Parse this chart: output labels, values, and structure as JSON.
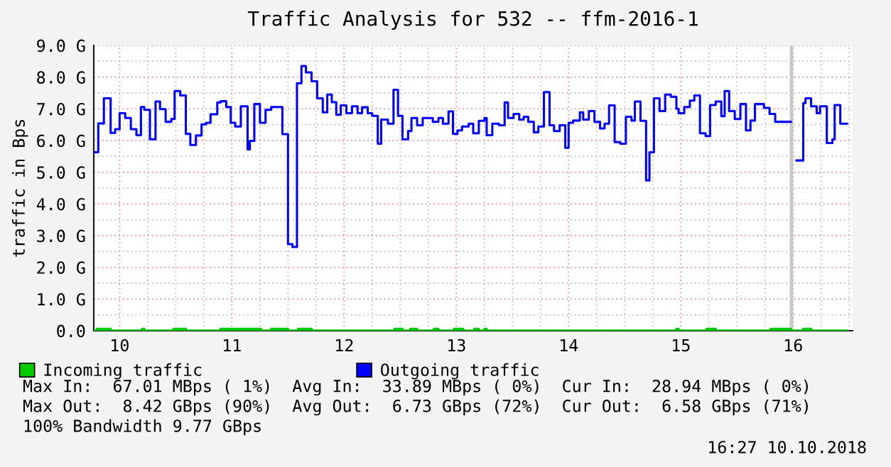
{
  "chart_data": {
    "type": "step",
    "title": "Traffic Analysis for 532 -- ffm-2016-1",
    "ylabel": "traffic in Bps",
    "series": [
      {
        "name": "Incoming traffic",
        "type": "area",
        "color": "#00cc00",
        "x": [
          9.78,
          9.8,
          9.92,
          10.2,
          10.22,
          10.48,
          10.59,
          10.9,
          11.26,
          11.35,
          11.5,
          11.59,
          11.71,
          12.45,
          12.52,
          12.59,
          12.65,
          12.8,
          12.84,
          12.98,
          13.06,
          13.16,
          13.2,
          13.25,
          13.27,
          14.96,
          14.98,
          15.23,
          15.31,
          15.8,
          15.98,
          16.09,
          16.16,
          16.48
        ],
        "values": [
          0,
          0.06,
          0,
          0.06,
          0,
          0.06,
          0,
          0.06,
          0,
          0.06,
          0,
          0.06,
          0,
          0.06,
          0,
          0.06,
          0,
          0.06,
          0,
          0.06,
          0,
          0.06,
          0,
          0.06,
          0,
          0.06,
          0,
          0.06,
          0,
          0.06,
          0,
          0.06,
          0,
          0
        ]
      },
      {
        "name": "Outgoing traffic",
        "color": "#0000ff",
        "x": [
          9.78,
          9.81,
          9.86,
          9.92,
          9.96,
          10.0,
          10.05,
          10.1,
          10.15,
          10.19,
          10.22,
          10.27,
          10.32,
          10.36,
          10.41,
          10.46,
          10.49,
          10.54,
          10.59,
          10.63,
          10.68,
          10.73,
          10.77,
          10.81,
          10.87,
          10.9,
          10.95,
          10.99,
          11.03,
          11.08,
          11.14,
          11.16,
          11.2,
          11.25,
          11.3,
          11.35,
          11.45,
          11.5,
          11.54,
          11.58,
          11.62,
          11.66,
          11.71,
          11.76,
          11.81,
          11.85,
          11.89,
          11.93,
          11.97,
          12.02,
          12.07,
          12.12,
          12.16,
          12.21,
          12.25,
          12.3,
          12.33,
          12.39,
          12.44,
          12.48,
          12.52,
          12.57,
          12.6,
          12.65,
          12.7,
          12.79,
          12.84,
          12.88,
          12.93,
          12.97,
          13.01,
          13.05,
          13.11,
          13.15,
          13.2,
          13.25,
          13.27,
          13.32,
          13.38,
          13.43,
          13.46,
          13.51,
          13.56,
          13.6,
          13.64,
          13.69,
          13.73,
          13.78,
          13.83,
          13.87,
          13.92,
          13.97,
          14.0,
          14.04,
          14.1,
          14.13,
          14.18,
          14.23,
          14.28,
          14.32,
          14.36,
          14.41,
          14.46,
          14.51,
          14.56,
          14.59,
          14.64,
          14.69,
          14.72,
          14.76,
          14.81,
          14.86,
          14.91,
          14.96,
          14.98,
          15.03,
          15.08,
          15.12,
          15.17,
          15.22,
          15.26,
          15.31,
          15.36,
          15.39,
          15.43,
          15.48,
          15.53,
          15.58,
          15.62,
          15.66,
          15.74,
          15.79,
          15.84,
          15.98,
          16.03,
          16.09,
          16.11,
          16.16,
          16.21,
          16.24,
          16.3,
          16.35,
          16.37,
          16.42,
          16.48
        ],
        "values": [
          5.63,
          6.54,
          7.33,
          6.24,
          6.36,
          6.86,
          6.71,
          6.36,
          6.17,
          7.06,
          6.97,
          6.04,
          7.23,
          6.99,
          6.59,
          6.68,
          7.56,
          7.42,
          6.21,
          5.86,
          6.16,
          6.51,
          6.56,
          6.83,
          7.2,
          7.24,
          7.06,
          6.56,
          6.44,
          7.08,
          5.72,
          5.99,
          7.15,
          6.56,
          6.97,
          7.06,
          6.2,
          2.73,
          2.64,
          7.81,
          8.35,
          8.15,
          7.87,
          7.33,
          6.89,
          7.45,
          7.21,
          6.81,
          7.11,
          6.86,
          7.08,
          6.86,
          7.05,
          6.86,
          6.78,
          5.9,
          6.66,
          6.53,
          7.6,
          6.78,
          6.04,
          6.3,
          6.71,
          6.48,
          6.71,
          6.59,
          6.71,
          6.53,
          6.92,
          6.21,
          6.32,
          6.44,
          6.53,
          6.23,
          6.62,
          6.71,
          6.17,
          6.53,
          6.48,
          7.2,
          6.71,
          6.84,
          6.66,
          6.75,
          6.59,
          6.26,
          6.44,
          7.53,
          6.48,
          6.3,
          6.48,
          5.77,
          6.56,
          6.63,
          6.89,
          6.66,
          6.93,
          6.59,
          6.38,
          6.53,
          7.11,
          5.95,
          5.9,
          6.75,
          6.63,
          7.23,
          6.62,
          4.74,
          5.63,
          7.33,
          6.93,
          7.45,
          7.38,
          7.0,
          6.86,
          7.06,
          7.26,
          7.42,
          6.23,
          6.14,
          7.12,
          7.23,
          6.77,
          7.56,
          6.93,
          6.68,
          7.15,
          6.32,
          6.63,
          7.15,
          7.03,
          6.84,
          6.59,
          null,
          5.37,
          7.18,
          7.33,
          7.08,
          6.86,
          7.08,
          5.92,
          6.04,
          7.12,
          6.53,
          6.53
        ]
      }
    ],
    "xlim": [
      9.77,
      16.53
    ],
    "xticks": [
      10,
      11,
      12,
      13,
      14,
      15,
      16
    ],
    "ylim": [
      0,
      9.0
    ],
    "yticks": [
      {
        "value": 0,
        "label": "0.0"
      },
      {
        "value": 1,
        "label": "1.0 G"
      },
      {
        "value": 2,
        "label": "2.0 G"
      },
      {
        "value": 3,
        "label": "3.0 G"
      },
      {
        "value": 4,
        "label": "4.0 G"
      },
      {
        "value": 5,
        "label": "5.0 G"
      },
      {
        "value": 6,
        "label": "6.0 G"
      },
      {
        "value": 7,
        "label": "7.0 G"
      },
      {
        "value": 8,
        "label": "8.0 G"
      },
      {
        "value": 9,
        "label": "9.0 G"
      }
    ],
    "bands": [
      {
        "axis": "x",
        "from": 15.97,
        "to": 16.0,
        "color": "#c8c8c8"
      }
    ],
    "grid": true,
    "legend": "bottom",
    "annotations": [
      "Max In:  67.01 MBps ( 1%)  Avg In:  33.89 MBps ( 0%)  Cur In:  28.94 MBps ( 0%)",
      "Max Out:  8.42 GBps (90%)  Avg Out:  6.73 GBps (72%)  Cur Out:  6.58 GBps (71%)",
      "100% Bandwidth 9.77 GBps",
      "16:27 10.10.2018"
    ]
  }
}
